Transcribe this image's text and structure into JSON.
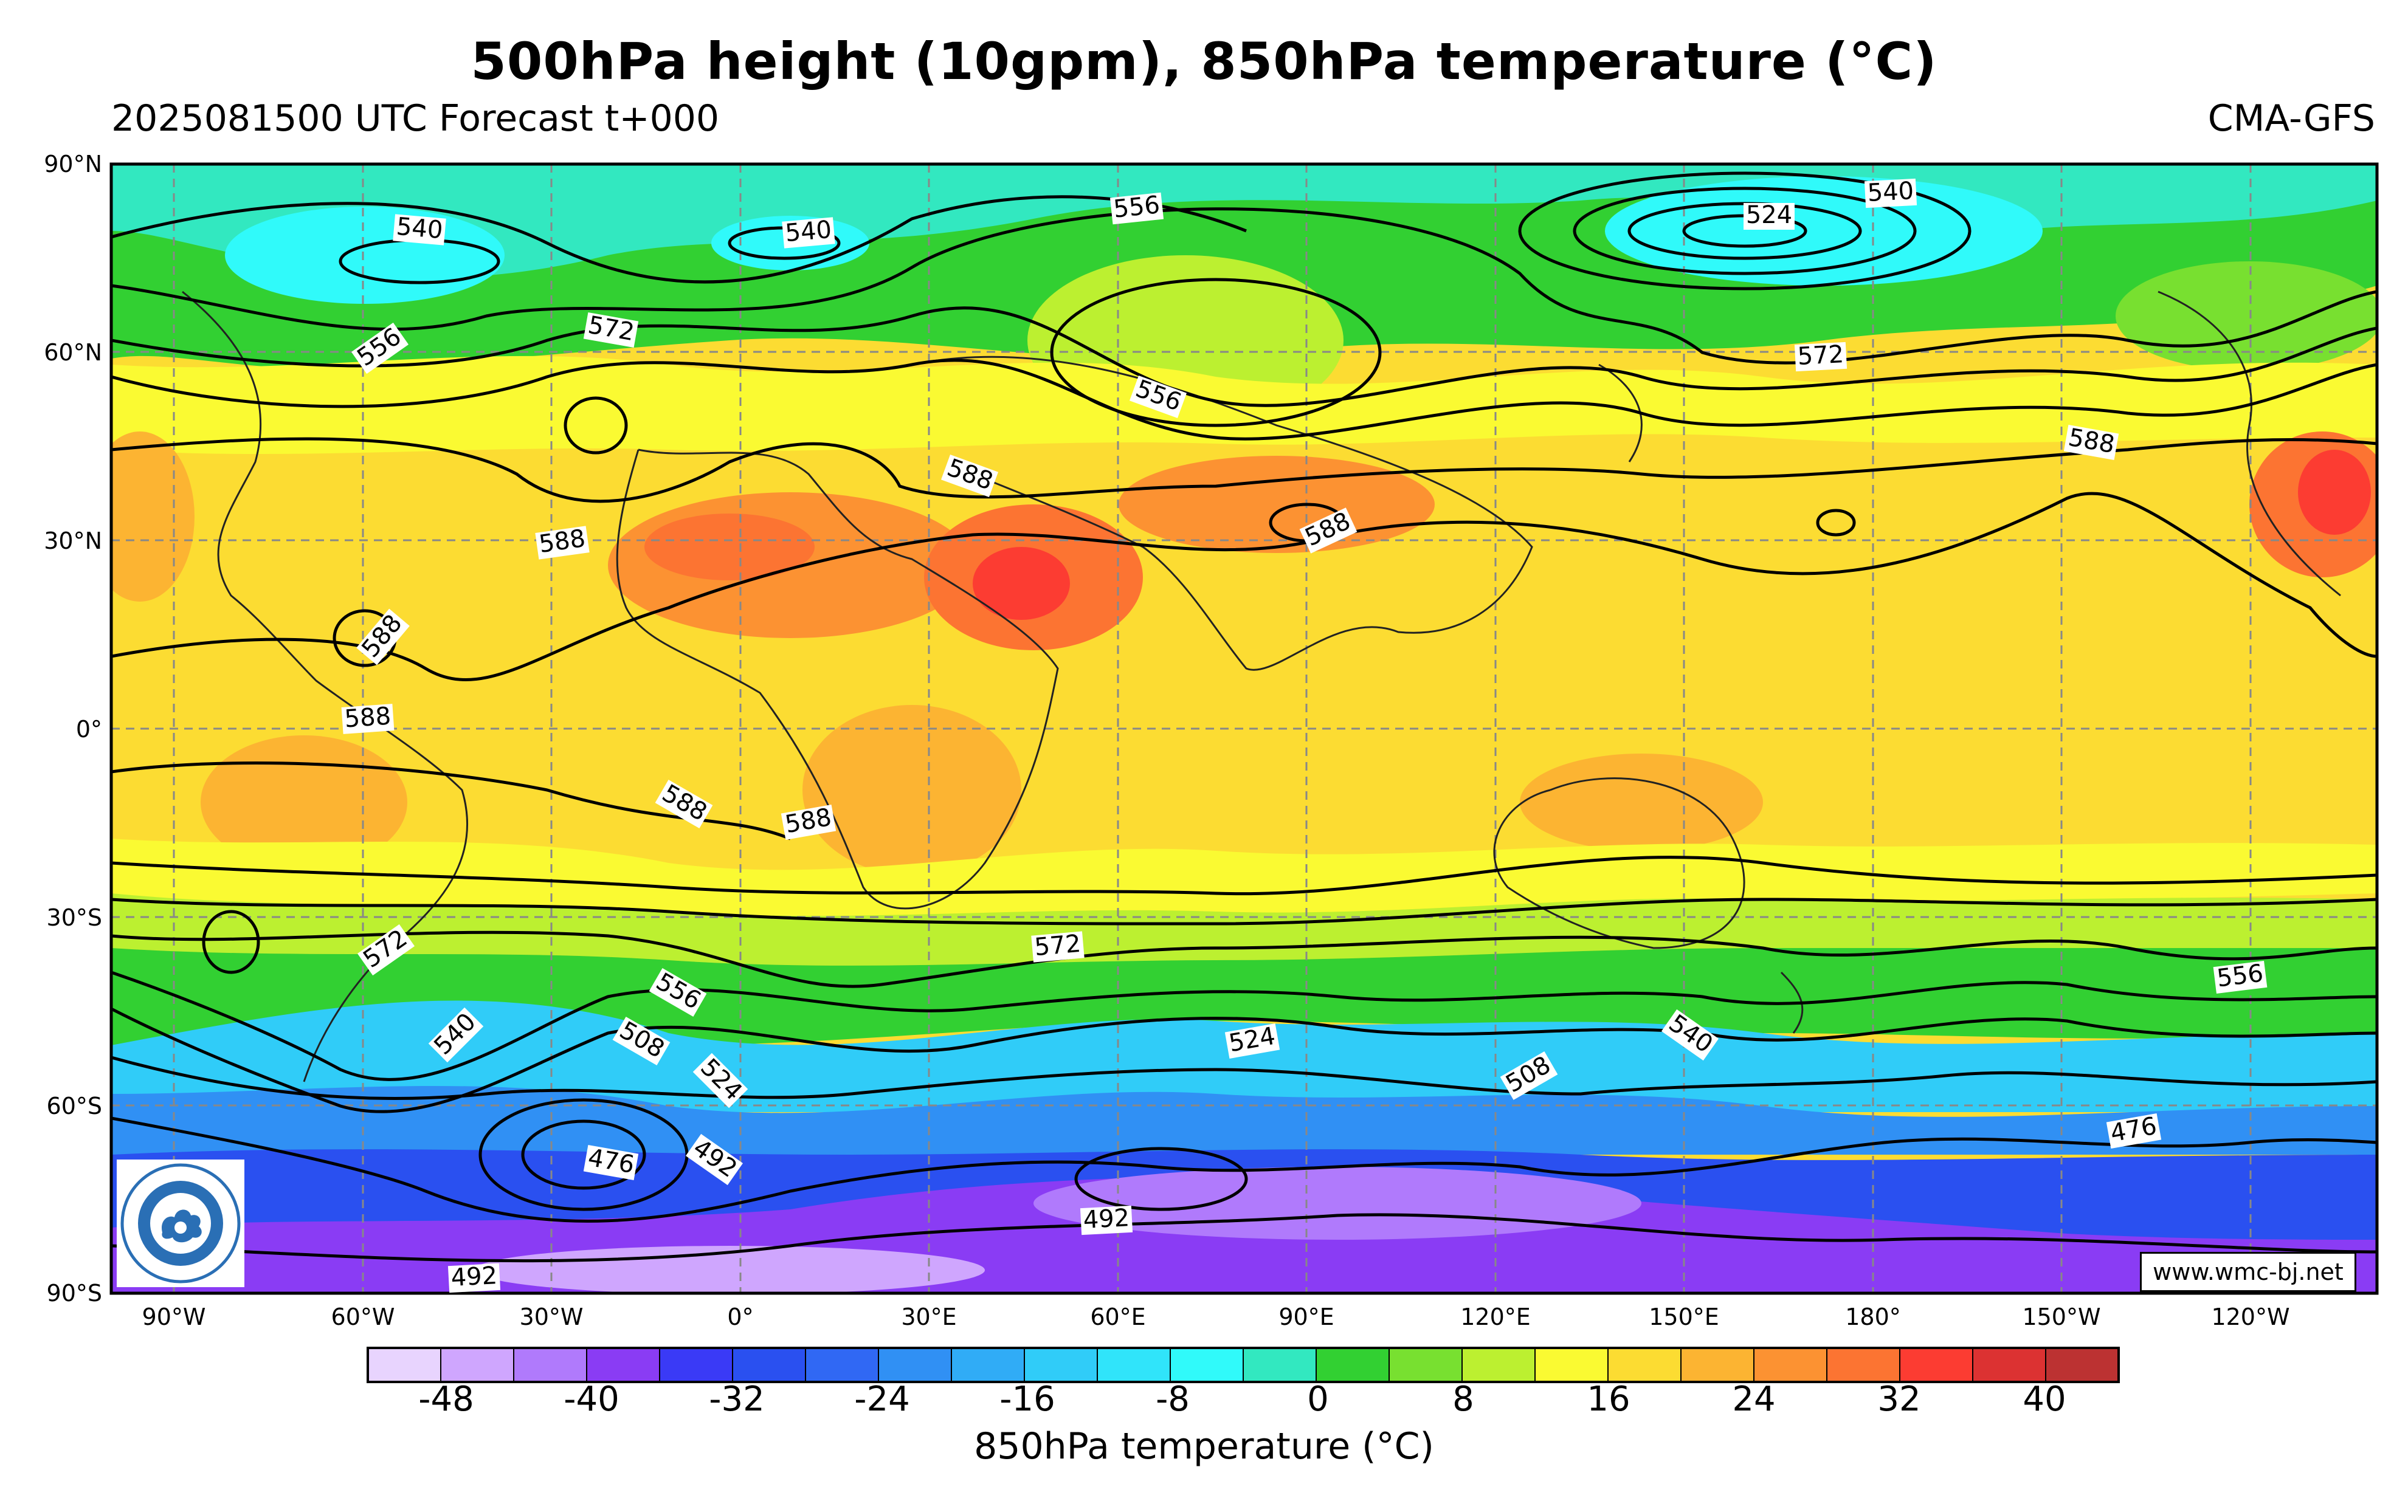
{
  "title": "500hPa height (10gpm), 850hPa temperature (°C)",
  "subtitle_left": "2025081500 UTC Forecast t+000",
  "subtitle_right": "CMA-GFS",
  "website": "www.wmc-bj.net",
  "lat_ticks": [
    "90°N",
    "60°N",
    "30°N",
    "0°",
    "30°S",
    "60°S",
    "90°S"
  ],
  "lon_ticks": [
    "90°W",
    "60°W",
    "30°W",
    "0°",
    "30°E",
    "60°E",
    "90°E",
    "120°E",
    "150°E",
    "180°",
    "150°W",
    "120°W"
  ],
  "colorbar": {
    "label": "850hPa temperature (°C)",
    "tick_labels": [
      "-48",
      "-40",
      "-32",
      "-24",
      "-16",
      "-8",
      "0",
      "8",
      "16",
      "24",
      "32",
      "40"
    ],
    "colors": [
      "#e8d4fe",
      "#cfa6fe",
      "#b07afc",
      "#8a3cf4",
      "#3a3af6",
      "#2a50f0",
      "#3068f4",
      "#3090f4",
      "#30acf6",
      "#30ccf8",
      "#30e4fa",
      "#30fafa",
      "#32e8c0",
      "#32d032",
      "#78e030",
      "#bcf030",
      "#fafa32",
      "#fcdc32",
      "#fcb432",
      "#fc9232",
      "#fc7432",
      "#fc3c32",
      "#dc3232",
      "#bc3232"
    ]
  },
  "contour_labels": [
    {
      "text": "540"
    },
    {
      "text": "540"
    },
    {
      "text": "556"
    },
    {
      "text": "524"
    },
    {
      "text": "540"
    },
    {
      "text": "556"
    },
    {
      "text": "572"
    },
    {
      "text": "556"
    },
    {
      "text": "572"
    },
    {
      "text": "588"
    },
    {
      "text": "588"
    },
    {
      "text": "588"
    },
    {
      "text": "588"
    },
    {
      "text": "588"
    },
    {
      "text": "588"
    },
    {
      "text": "588"
    },
    {
      "text": "588"
    },
    {
      "text": "572"
    },
    {
      "text": "572"
    },
    {
      "text": "556"
    },
    {
      "text": "556"
    },
    {
      "text": "540"
    },
    {
      "text": "508"
    },
    {
      "text": "524"
    },
    {
      "text": "524"
    },
    {
      "text": "540"
    },
    {
      "text": "508"
    },
    {
      "text": "476"
    },
    {
      "text": "492"
    },
    {
      "text": "492"
    },
    {
      "text": "476"
    },
    {
      "text": "492"
    }
  ]
}
